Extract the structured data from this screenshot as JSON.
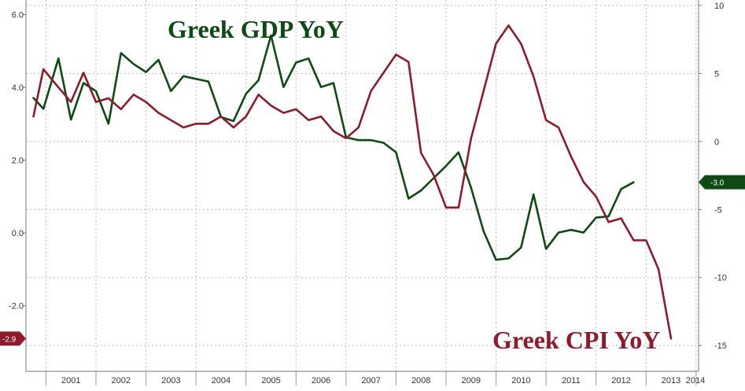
{
  "chart_data": {
    "type": "line",
    "title": "",
    "grid": true,
    "x_tick_labels": [
      "2001",
      "2002",
      "2003",
      "2004",
      "2005",
      "2006",
      "2007",
      "2008",
      "2009",
      "2010",
      "2011",
      "2012",
      "2013",
      "2014"
    ],
    "x_range": [
      2000.6,
      2014.05
    ],
    "y_left": {
      "range": [
        -3.8,
        6.4
      ],
      "ticks": [
        6.0,
        4.0,
        2.0,
        0.0,
        -2.0
      ],
      "tick_labels": [
        "6.0",
        "4.0",
        "2.0",
        "0.0",
        "-2.0"
      ]
    },
    "y_right": {
      "range": [
        -16.9,
        10.4
      ],
      "ticks": [
        10,
        5,
        0,
        -5,
        -10,
        -15
      ],
      "tick_labels": [
        "10",
        "5",
        "0",
        "-5",
        "-10",
        "-15"
      ]
    },
    "series": [
      {
        "name": "Greek GDP YoY",
        "axis": "right",
        "color": "#0f4a14",
        "last_value_label": "-3.0",
        "points": [
          [
            2000.75,
            3.2
          ],
          [
            2000.95,
            2.4
          ],
          [
            2001.25,
            6.1
          ],
          [
            2001.5,
            1.6
          ],
          [
            2001.75,
            4.3
          ],
          [
            2002.0,
            3.7
          ],
          [
            2002.25,
            1.3
          ],
          [
            2002.5,
            6.5
          ],
          [
            2002.75,
            5.7
          ],
          [
            2003.0,
            5.1
          ],
          [
            2003.25,
            6.0
          ],
          [
            2003.5,
            3.7
          ],
          [
            2003.75,
            4.8
          ],
          [
            2004.0,
            4.6
          ],
          [
            2004.25,
            4.4
          ],
          [
            2004.5,
            1.8
          ],
          [
            2004.75,
            1.5
          ],
          [
            2005.0,
            3.5
          ],
          [
            2005.25,
            4.5
          ],
          [
            2005.5,
            7.8
          ],
          [
            2005.75,
            4.0
          ],
          [
            2006.0,
            5.8
          ],
          [
            2006.25,
            6.1
          ],
          [
            2006.5,
            4.0
          ],
          [
            2006.75,
            4.3
          ],
          [
            2007.0,
            0.3
          ],
          [
            2007.25,
            0.1
          ],
          [
            2007.5,
            0.1
          ],
          [
            2007.75,
            -0.1
          ],
          [
            2008.0,
            -0.8
          ],
          [
            2008.25,
            -4.2
          ],
          [
            2008.5,
            -3.6
          ],
          [
            2008.75,
            -2.7
          ],
          [
            2009.0,
            -1.8
          ],
          [
            2009.25,
            -0.8
          ],
          [
            2009.5,
            -3.4
          ],
          [
            2009.75,
            -6.6
          ],
          [
            2010.0,
            -8.7
          ],
          [
            2010.25,
            -8.6
          ],
          [
            2010.5,
            -7.8
          ],
          [
            2010.75,
            -3.9
          ],
          [
            2011.0,
            -7.9
          ],
          [
            2011.25,
            -6.7
          ],
          [
            2011.5,
            -6.5
          ],
          [
            2011.75,
            -6.7
          ],
          [
            2012.0,
            -5.6
          ],
          [
            2012.25,
            -5.5
          ],
          [
            2012.5,
            -3.5
          ],
          [
            2012.75,
            -3.0
          ]
        ]
      },
      {
        "name": "Greek CPI YoY",
        "axis": "left",
        "color": "#8e1b2c",
        "last_value_label": "-2.9",
        "points": [
          [
            2000.75,
            3.2
          ],
          [
            2000.95,
            4.5
          ],
          [
            2001.25,
            4.0
          ],
          [
            2001.5,
            3.6
          ],
          [
            2001.75,
            4.4
          ],
          [
            2002.0,
            3.6
          ],
          [
            2002.25,
            3.7
          ],
          [
            2002.5,
            3.4
          ],
          [
            2002.75,
            3.8
          ],
          [
            2003.0,
            3.6
          ],
          [
            2003.25,
            3.3
          ],
          [
            2003.5,
            3.1
          ],
          [
            2003.75,
            2.9
          ],
          [
            2004.0,
            3.0
          ],
          [
            2004.25,
            3.0
          ],
          [
            2004.5,
            3.2
          ],
          [
            2004.75,
            2.9
          ],
          [
            2005.0,
            3.2
          ],
          [
            2005.25,
            3.8
          ],
          [
            2005.5,
            3.5
          ],
          [
            2005.75,
            3.3
          ],
          [
            2006.0,
            3.4
          ],
          [
            2006.25,
            3.1
          ],
          [
            2006.5,
            3.2
          ],
          [
            2006.75,
            2.8
          ],
          [
            2007.0,
            2.6
          ],
          [
            2007.25,
            2.9
          ],
          [
            2007.5,
            3.9
          ],
          [
            2007.75,
            4.4
          ],
          [
            2008.0,
            4.9
          ],
          [
            2008.25,
            4.7
          ],
          [
            2008.5,
            2.2
          ],
          [
            2008.75,
            1.6
          ],
          [
            2009.0,
            0.7
          ],
          [
            2009.25,
            0.7
          ],
          [
            2009.5,
            2.6
          ],
          [
            2009.75,
            3.9
          ],
          [
            2010.0,
            5.2
          ],
          [
            2010.25,
            5.7
          ],
          [
            2010.5,
            5.2
          ],
          [
            2010.75,
            4.3
          ],
          [
            2011.0,
            3.1
          ],
          [
            2011.25,
            2.9
          ],
          [
            2011.5,
            2.1
          ],
          [
            2011.75,
            1.4
          ],
          [
            2012.0,
            1.0
          ],
          [
            2012.25,
            0.3
          ],
          [
            2012.5,
            0.4
          ],
          [
            2012.75,
            -0.2
          ],
          [
            2013.0,
            -0.2
          ],
          [
            2013.25,
            -1.0
          ],
          [
            2013.5,
            -2.9
          ]
        ]
      }
    ]
  }
}
